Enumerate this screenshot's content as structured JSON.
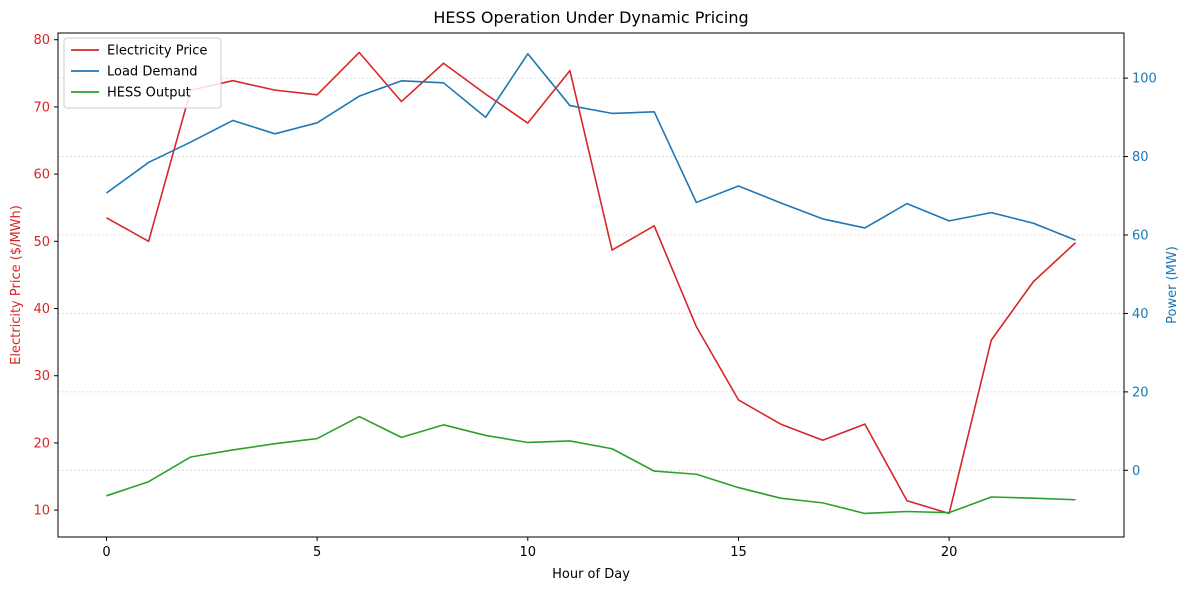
{
  "chart_data": {
    "type": "line",
    "title": "HESS Operation Under Dynamic Pricing",
    "xlabel": "Hour of Day",
    "ylabel_left": "Electricity Price ($/MWh)",
    "ylabel_right": "Power (MW)",
    "x": [
      0,
      1,
      2,
      3,
      4,
      5,
      6,
      7,
      8,
      9,
      10,
      11,
      12,
      13,
      14,
      15,
      16,
      17,
      18,
      19,
      20,
      21,
      22,
      23
    ],
    "xlim": [
      -1.15,
      24.15
    ],
    "xticks": [
      0,
      5,
      10,
      15,
      20
    ],
    "ylim_left": [
      6.0,
      81.0
    ],
    "yticks_left": [
      10,
      20,
      30,
      40,
      50,
      60,
      70,
      80
    ],
    "ylim_right": [
      -17.0,
      111.5
    ],
    "yticks_right": [
      0,
      20,
      40,
      60,
      80,
      100
    ],
    "grid": "horizontal dotted on right axis",
    "legend_position": "top-left",
    "series": [
      {
        "name": "Electricity Price",
        "axis": "left",
        "color": "#d62728",
        "values": [
          53.5,
          50.0,
          72.5,
          73.9,
          72.5,
          71.8,
          78.1,
          70.8,
          76.5,
          71.9,
          67.6,
          75.4,
          48.7,
          52.3,
          37.3,
          26.4,
          22.8,
          20.4,
          22.8,
          11.4,
          9.5,
          35.3,
          44.0,
          49.8
        ]
      },
      {
        "name": "Load Demand",
        "axis": "right",
        "color": "#1f77b4",
        "values": [
          70.7,
          78.5,
          83.7,
          89.2,
          85.8,
          88.6,
          95.4,
          99.3,
          98.8,
          90.0,
          106.2,
          93.0,
          91.0,
          91.4,
          68.3,
          72.5,
          68.2,
          64.1,
          61.8,
          68.0,
          63.6,
          65.7,
          63.0,
          58.7
        ]
      },
      {
        "name": "HESS Output",
        "axis": "right",
        "color": "#2ca02c",
        "values": [
          -6.5,
          -2.9,
          3.4,
          5.2,
          6.8,
          8.1,
          13.7,
          8.4,
          11.6,
          8.9,
          7.1,
          7.5,
          5.5,
          -0.2,
          -1.0,
          -4.4,
          -7.1,
          -8.3,
          -11.0,
          -10.5,
          -10.8,
          -6.8,
          -7.1,
          -7.5
        ]
      }
    ]
  }
}
